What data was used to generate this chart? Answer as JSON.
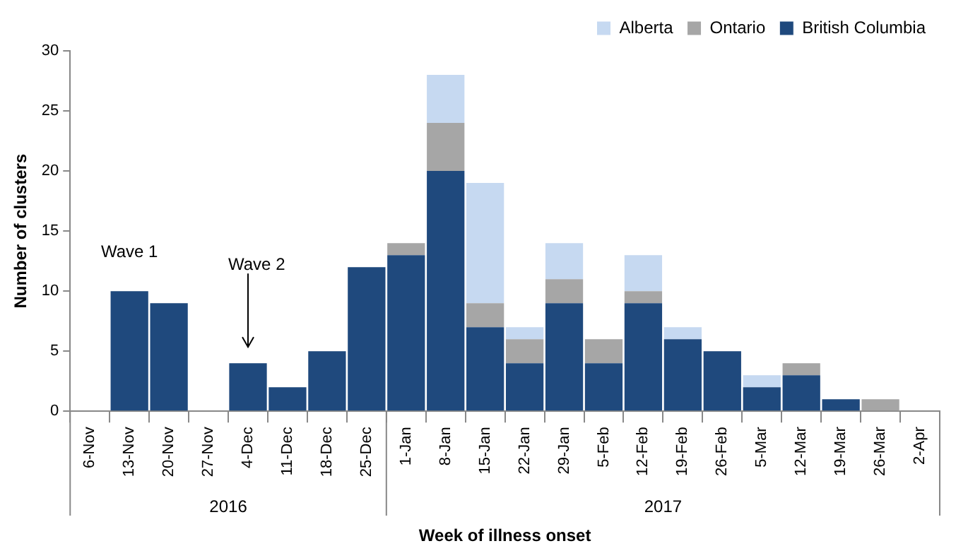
{
  "chart_data": {
    "type": "bar",
    "stacked": true,
    "xlabel": "Week of illness onset",
    "ylabel": "Number of clusters",
    "categories": [
      "6-Nov",
      "13-Nov",
      "20-Nov",
      "27-Nov",
      "4-Dec",
      "11-Dec",
      "18-Dec",
      "25-Dec",
      "1-Jan",
      "8-Jan",
      "15-Jan",
      "22-Jan",
      "29-Jan",
      "5-Feb",
      "12-Feb",
      "19-Feb",
      "26-Feb",
      "5-Mar",
      "12-Mar",
      "19-Mar",
      "26-Mar",
      "2-Apr"
    ],
    "series": [
      {
        "name": "British Columbia",
        "color": "#1f497d",
        "values": [
          0,
          10,
          9,
          0,
          4,
          2,
          5,
          12,
          13,
          20,
          7,
          4,
          9,
          4,
          9,
          6,
          5,
          2,
          3,
          1,
          0,
          0
        ]
      },
      {
        "name": "Ontario",
        "color": "#a6a6a6",
        "values": [
          0,
          0,
          0,
          0,
          0,
          0,
          0,
          0,
          1,
          4,
          2,
          2,
          2,
          2,
          1,
          0,
          0,
          0,
          1,
          0,
          1,
          0
        ]
      },
      {
        "name": "Alberta",
        "color": "#c6d9f1",
        "values": [
          0,
          0,
          0,
          0,
          0,
          0,
          0,
          0,
          0,
          4,
          10,
          1,
          3,
          0,
          3,
          1,
          0,
          1,
          0,
          0,
          0,
          0
        ]
      }
    ],
    "ylim": [
      0,
      30
    ],
    "yticks": [
      0,
      5,
      10,
      15,
      20,
      25,
      30
    ],
    "grid": false,
    "legend": "top right",
    "annotations": [
      "Wave 1",
      "Wave 2",
      "2016",
      "2017"
    ]
  }
}
